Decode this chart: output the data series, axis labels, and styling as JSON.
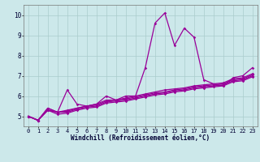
{
  "x_values": [
    0,
    1,
    2,
    3,
    4,
    5,
    6,
    7,
    8,
    9,
    10,
    11,
    12,
    13,
    14,
    15,
    16,
    17,
    18,
    19,
    20,
    21,
    22,
    23
  ],
  "lines": [
    [
      5.0,
      4.8,
      5.4,
      5.2,
      6.3,
      5.6,
      5.5,
      5.6,
      6.0,
      5.8,
      6.0,
      6.0,
      7.4,
      9.6,
      10.1,
      8.5,
      9.35,
      8.9,
      6.8,
      6.6,
      6.5,
      6.9,
      7.0,
      7.4
    ],
    [
      5.0,
      4.8,
      5.4,
      5.2,
      5.3,
      5.4,
      5.5,
      5.6,
      5.8,
      5.8,
      5.9,
      6.0,
      6.1,
      6.2,
      6.3,
      6.35,
      6.4,
      6.5,
      6.55,
      6.6,
      6.65,
      6.85,
      6.9,
      7.1
    ],
    [
      5.0,
      4.8,
      5.3,
      5.2,
      5.25,
      5.4,
      5.5,
      5.55,
      5.75,
      5.8,
      5.85,
      5.95,
      6.05,
      6.15,
      6.2,
      6.3,
      6.35,
      6.45,
      6.5,
      6.55,
      6.6,
      6.8,
      6.85,
      7.05
    ],
    [
      5.0,
      4.8,
      5.3,
      5.2,
      5.2,
      5.35,
      5.45,
      5.5,
      5.7,
      5.75,
      5.8,
      5.9,
      6.0,
      6.1,
      6.15,
      6.25,
      6.3,
      6.4,
      6.45,
      6.5,
      6.55,
      6.75,
      6.8,
      7.0
    ],
    [
      5.0,
      4.8,
      5.3,
      5.1,
      5.15,
      5.3,
      5.4,
      5.45,
      5.65,
      5.7,
      5.75,
      5.85,
      5.95,
      6.05,
      6.1,
      6.2,
      6.25,
      6.35,
      6.4,
      6.45,
      6.5,
      6.7,
      6.75,
      6.95
    ]
  ],
  "line_color": "#990099",
  "marker": "D",
  "marker_size": 1.8,
  "bg_color": "#cce8ea",
  "grid_color": "#aacccc",
  "xlabel": "Windchill (Refroidissement éolien,°C)",
  "ylim": [
    4.5,
    10.5
  ],
  "xlim": [
    -0.5,
    23.5
  ],
  "yticks": [
    5,
    6,
    7,
    8,
    9,
    10
  ],
  "xticks": [
    0,
    1,
    2,
    3,
    4,
    5,
    6,
    7,
    8,
    9,
    10,
    11,
    12,
    13,
    14,
    15,
    16,
    17,
    18,
    19,
    20,
    21,
    22,
    23
  ],
  "tick_fontsize": 5.0,
  "xlabel_fontsize": 5.5,
  "linewidth": 0.9
}
